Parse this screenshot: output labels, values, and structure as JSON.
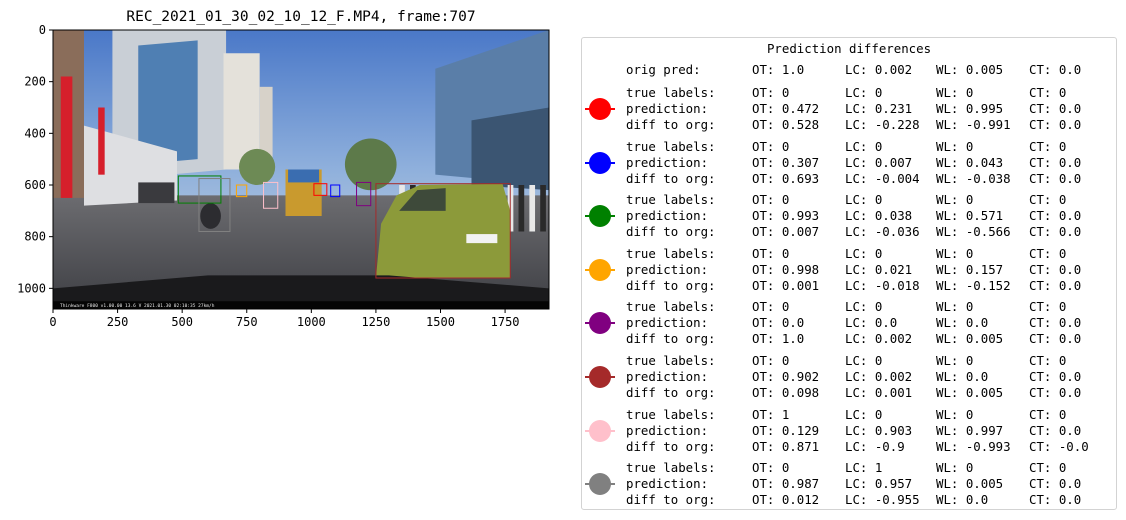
{
  "chart_data": [
    {
      "type": "image",
      "title": "REC_2021_01_30_02_10_12_F.MP4, frame:707",
      "xlim": [
        0,
        1920
      ],
      "ylim": [
        1080,
        0
      ],
      "xticks": [
        0,
        250,
        500,
        750,
        1000,
        1250,
        1500,
        1750
      ],
      "yticks": [
        0,
        200,
        400,
        600,
        800,
        1000
      ],
      "image_caption": "Thinkware F800   v1.00.00   13.6 V        2021.01.30 02:10:35    27km/h",
      "bounding_boxes": [
        {
          "color": "#ff0000",
          "x0": 1010,
          "y0": 595,
          "x1": 1060,
          "y1": 640
        },
        {
          "color": "#0000ff",
          "x0": 1075,
          "y0": 600,
          "x1": 1110,
          "y1": 645
        },
        {
          "color": "#008000",
          "x0": 485,
          "y0": 565,
          "x1": 650,
          "y1": 670
        },
        {
          "color": "#ffa500",
          "x0": 710,
          "y0": 600,
          "x1": 750,
          "y1": 645
        },
        {
          "color": "#800080",
          "x0": 1175,
          "y0": 590,
          "x1": 1230,
          "y1": 680
        },
        {
          "color": "#a52a2a",
          "x0": 1250,
          "y0": 595,
          "x1": 1770,
          "y1": 960
        },
        {
          "color": "#ffc0cb",
          "x0": 815,
          "y0": 590,
          "x1": 870,
          "y1": 690
        },
        {
          "color": "#808080",
          "x0": 565,
          "y0": 575,
          "x1": 685,
          "y1": 780
        }
      ]
    },
    {
      "type": "table",
      "title": "Prediction differences",
      "orig_pred": {
        "label": "orig pred:",
        "OT": "OT: 1.0",
        "LC": "LC: 0.002",
        "WL": "WL: 0.005",
        "CT": "CT: 0.0"
      },
      "entries": [
        {
          "color": "#ff0000",
          "rows": [
            [
              "true labels:",
              "OT: 0",
              "LC: 0",
              "WL: 0",
              "CT: 0"
            ],
            [
              "prediction:",
              "OT: 0.472",
              "LC: 0.231",
              "WL: 0.995",
              "CT: 0.0"
            ],
            [
              "diff to org:",
              "OT: 0.528",
              "LC: -0.228",
              "WL: -0.991",
              "CT: 0.0"
            ]
          ]
        },
        {
          "color": "#0000ff",
          "rows": [
            [
              "true labels:",
              "OT: 0",
              "LC: 0",
              "WL: 0",
              "CT: 0"
            ],
            [
              "prediction:",
              "OT: 0.307",
              "LC: 0.007",
              "WL: 0.043",
              "CT: 0.0"
            ],
            [
              "diff to org:",
              "OT: 0.693",
              "LC: -0.004",
              "WL: -0.038",
              "CT: 0.0"
            ]
          ]
        },
        {
          "color": "#008000",
          "rows": [
            [
              "true labels:",
              "OT: 0",
              "LC: 0",
              "WL: 0",
              "CT: 0"
            ],
            [
              "prediction:",
              "OT: 0.993",
              "LC: 0.038",
              "WL: 0.571",
              "CT: 0.0"
            ],
            [
              "diff to org:",
              "OT: 0.007",
              "LC: -0.036",
              "WL: -0.566",
              "CT: 0.0"
            ]
          ]
        },
        {
          "color": "#ffa500",
          "rows": [
            [
              "true labels:",
              "OT: 0",
              "LC: 0",
              "WL: 0",
              "CT: 0"
            ],
            [
              "prediction:",
              "OT: 0.998",
              "LC: 0.021",
              "WL: 0.157",
              "CT: 0.0"
            ],
            [
              "diff to org:",
              "OT: 0.001",
              "LC: -0.018",
              "WL: -0.152",
              "CT: 0.0"
            ]
          ]
        },
        {
          "color": "#800080",
          "rows": [
            [
              "true labels:",
              "OT: 0",
              "LC: 0",
              "WL: 0",
              "CT: 0"
            ],
            [
              "prediction:",
              "OT: 0.0",
              "LC: 0.0",
              "WL: 0.0",
              "CT: 0.0"
            ],
            [
              "diff to org:",
              "OT: 1.0",
              "LC: 0.002",
              "WL: 0.005",
              "CT: 0.0"
            ]
          ]
        },
        {
          "color": "#a52a2a",
          "rows": [
            [
              "true labels:",
              "OT: 0",
              "LC: 0",
              "WL: 0",
              "CT: 0"
            ],
            [
              "prediction:",
              "OT: 0.902",
              "LC: 0.002",
              "WL: 0.0",
              "CT: 0.0"
            ],
            [
              "diff to org:",
              "OT: 0.098",
              "LC: 0.001",
              "WL: 0.005",
              "CT: 0.0"
            ]
          ]
        },
        {
          "color": "#ffc0cb",
          "rows": [
            [
              "true labels:",
              "OT: 1",
              "LC: 0",
              "WL: 0",
              "CT: 0"
            ],
            [
              "prediction:",
              "OT: 0.129",
              "LC: 0.903",
              "WL: 0.997",
              "CT: 0.0"
            ],
            [
              "diff to org:",
              "OT: 0.871",
              "LC: -0.9",
              "WL: -0.993",
              "CT: -0.0"
            ]
          ]
        },
        {
          "color": "#808080",
          "rows": [
            [
              "true labels:",
              "OT: 0",
              "LC: 1",
              "WL: 0",
              "CT: 0"
            ],
            [
              "prediction:",
              "OT: 0.987",
              "LC: 0.957",
              "WL: 0.005",
              "CT: 0.0"
            ],
            [
              "diff to org:",
              "OT: 0.012",
              "LC: -0.955",
              "WL: 0.0",
              "CT: 0.0"
            ]
          ]
        }
      ]
    }
  ]
}
